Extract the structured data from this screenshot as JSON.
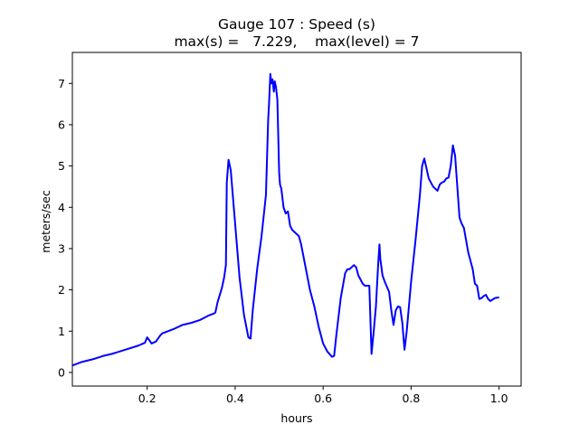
{
  "chart_data": {
    "type": "line",
    "title": "Gauge 107 : Speed (s)",
    "subtitle": "max(s) =   7.229,    max(level) = 7",
    "xlabel": "hours",
    "ylabel": "meters/sec",
    "xlim": [
      0.03,
      1.05
    ],
    "ylim": [
      -0.33,
      7.75
    ],
    "xticks": [
      0.2,
      0.4,
      0.6,
      0.8,
      1.0
    ],
    "xtick_labels": [
      "0.2",
      "0.4",
      "0.6",
      "0.8",
      "1.0"
    ],
    "yticks": [
      0,
      1,
      2,
      3,
      4,
      5,
      6,
      7
    ],
    "ytick_labels": [
      "0",
      "1",
      "2",
      "3",
      "4",
      "5",
      "6",
      "7"
    ],
    "grid": false,
    "series": [
      {
        "color": "#0000ff",
        "x": [
          0.03,
          0.05,
          0.08,
          0.1,
          0.12,
          0.15,
          0.18,
          0.195,
          0.2,
          0.205,
          0.21,
          0.22,
          0.23,
          0.235,
          0.24,
          0.26,
          0.28,
          0.3,
          0.32,
          0.34,
          0.35,
          0.355,
          0.36,
          0.37,
          0.375,
          0.379,
          0.381,
          0.385,
          0.39,
          0.4,
          0.41,
          0.42,
          0.43,
          0.435,
          0.44,
          0.45,
          0.46,
          0.47,
          0.475,
          0.477,
          0.48,
          0.482,
          0.485,
          0.488,
          0.49,
          0.493,
          0.496,
          0.5,
          0.502,
          0.505,
          0.51,
          0.515,
          0.52,
          0.525,
          0.53,
          0.54,
          0.545,
          0.55,
          0.56,
          0.57,
          0.58,
          0.59,
          0.6,
          0.61,
          0.62,
          0.625,
          0.63,
          0.64,
          0.65,
          0.655,
          0.66,
          0.67,
          0.675,
          0.68,
          0.69,
          0.695,
          0.7,
          0.705,
          0.71,
          0.715,
          0.72,
          0.725,
          0.728,
          0.73,
          0.735,
          0.74,
          0.75,
          0.755,
          0.76,
          0.765,
          0.77,
          0.775,
          0.78,
          0.785,
          0.79,
          0.8,
          0.81,
          0.82,
          0.825,
          0.83,
          0.84,
          0.85,
          0.86,
          0.865,
          0.87,
          0.875,
          0.88,
          0.885,
          0.89,
          0.895,
          0.9,
          0.905,
          0.91,
          0.915,
          0.92,
          0.93,
          0.94,
          0.945,
          0.95,
          0.955,
          0.96,
          0.965,
          0.97,
          0.975,
          0.98,
          0.99,
          1.0
        ],
        "y": [
          0.17,
          0.25,
          0.33,
          0.4,
          0.45,
          0.55,
          0.65,
          0.72,
          0.85,
          0.78,
          0.7,
          0.75,
          0.9,
          0.95,
          0.97,
          1.05,
          1.15,
          1.2,
          1.27,
          1.38,
          1.42,
          1.45,
          1.7,
          2.05,
          2.3,
          2.6,
          4.6,
          5.15,
          4.9,
          3.6,
          2.3,
          1.4,
          0.85,
          0.82,
          1.5,
          2.5,
          3.3,
          4.3,
          6.1,
          6.5,
          7.23,
          7.0,
          7.1,
          6.8,
          7.05,
          6.9,
          6.6,
          4.85,
          4.55,
          4.45,
          4.0,
          3.85,
          3.9,
          3.55,
          3.45,
          3.35,
          3.3,
          3.1,
          2.55,
          2.0,
          1.6,
          1.1,
          0.7,
          0.5,
          0.38,
          0.4,
          0.9,
          1.8,
          2.4,
          2.5,
          2.5,
          2.6,
          2.55,
          2.35,
          2.15,
          2.1,
          2.1,
          2.1,
          0.45,
          1.0,
          1.6,
          2.6,
          3.1,
          2.75,
          2.35,
          2.2,
          1.95,
          1.5,
          1.15,
          1.5,
          1.6,
          1.58,
          1.2,
          0.55,
          1.0,
          2.2,
          3.2,
          4.3,
          5.0,
          5.18,
          4.7,
          4.5,
          4.4,
          4.55,
          4.6,
          4.62,
          4.7,
          4.72,
          5.0,
          5.5,
          5.25,
          4.5,
          3.75,
          3.6,
          3.5,
          2.9,
          2.5,
          2.15,
          2.1,
          1.78,
          1.8,
          1.85,
          1.88,
          1.78,
          1.73,
          1.8,
          1.82
        ]
      }
    ]
  }
}
